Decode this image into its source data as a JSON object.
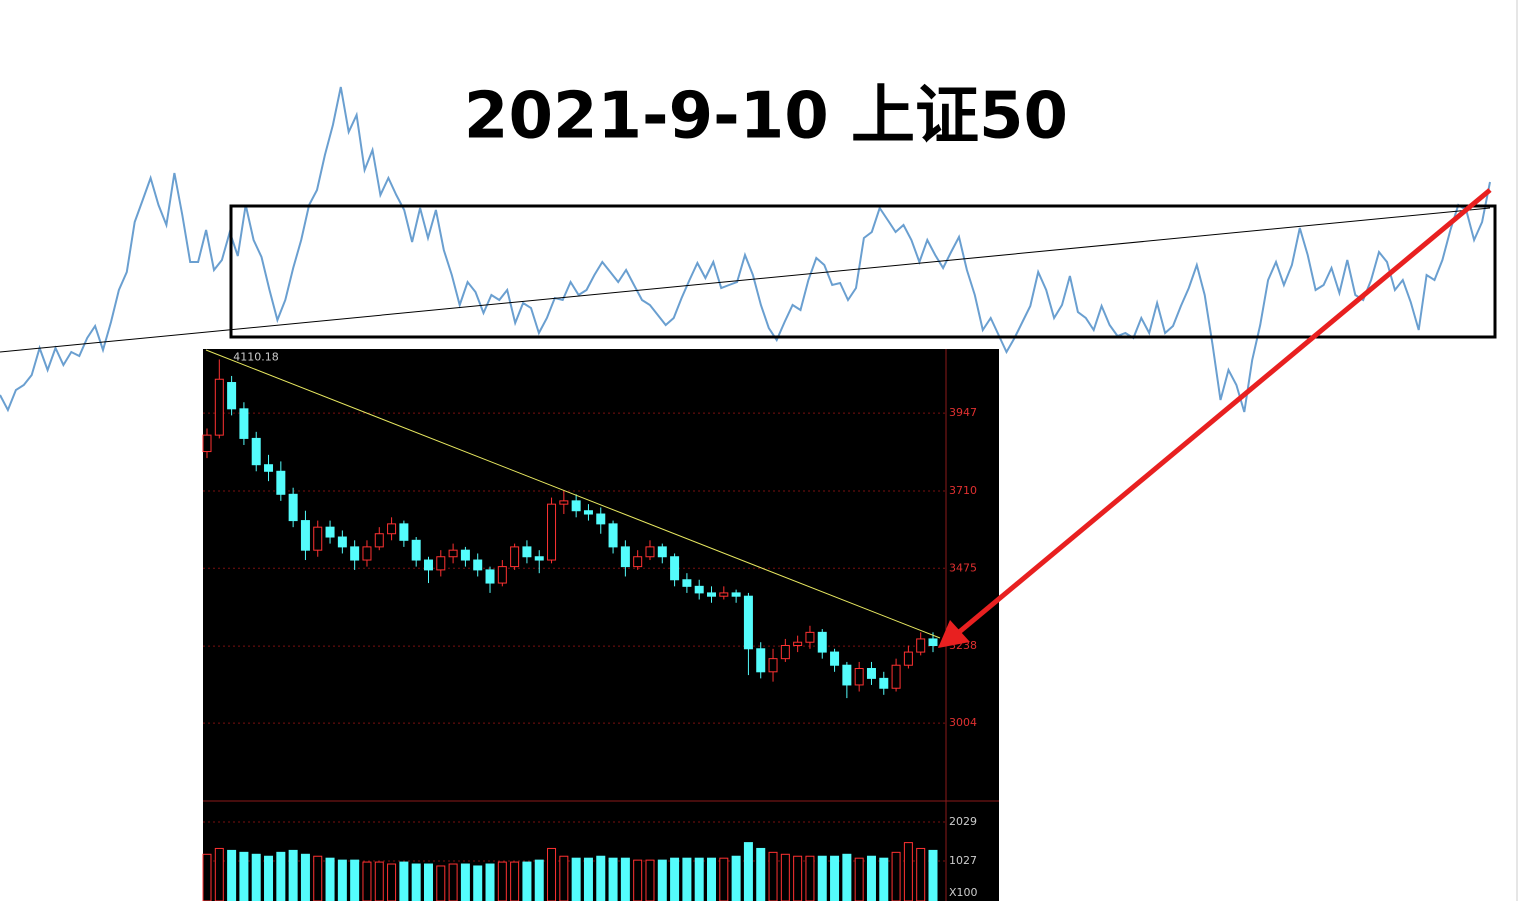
{
  "chart_data": [
    {
      "type": "line",
      "title": "2021-9-10 上证50",
      "color": "#6a9fd0",
      "ylim": [
        0,
        450
      ],
      "values": [
        55,
        40,
        60,
        65,
        75,
        102,
        80,
        102,
        85,
        98,
        94,
        112,
        124,
        100,
        128,
        160,
        178,
        228,
        250,
        272,
        245,
        225,
        277,
        235,
        188,
        188,
        220,
        180,
        190,
        218,
        194,
        245,
        210,
        193,
        160,
        130,
        150,
        182,
        210,
        245,
        260,
        295,
        325,
        363,
        318,
        335,
        280,
        300,
        255,
        272,
        255,
        240,
        208,
        242,
        212,
        240,
        200,
        175,
        145,
        168,
        158,
        137,
        155,
        150,
        160,
        127,
        147,
        142,
        117,
        132,
        152,
        150,
        168,
        155,
        160,
        175,
        188,
        178,
        168,
        180,
        165,
        150,
        145,
        135,
        125,
        132,
        152,
        170,
        187,
        172,
        188,
        162,
        165,
        168,
        195,
        175,
        145,
        122,
        110,
        128,
        145,
        140,
        170,
        192,
        185,
        165,
        167,
        150,
        162,
        212,
        218,
        242,
        230,
        218,
        225,
        210,
        188,
        210,
        195,
        182,
        198,
        213,
        180,
        155,
        120,
        132,
        115,
        98,
        112,
        128,
        144,
        178,
        160,
        132,
        145,
        174,
        138,
        132,
        120,
        144,
        125,
        114,
        117,
        112,
        132,
        117,
        147,
        117,
        124,
        144,
        162,
        185,
        155,
        105,
        50,
        80,
        65,
        38,
        90,
        125,
        170,
        188,
        165,
        185,
        222,
        195,
        160,
        165,
        182,
        157,
        190,
        155,
        150,
        170,
        198,
        188,
        160,
        170,
        148,
        120,
        175,
        170,
        190,
        220,
        245,
        240,
        210,
        228,
        268
      ]
    },
    {
      "type": "candlestick",
      "up_color": "#ff3232",
      "down_color": "#54fcfc",
      "ylim": [
        2770,
        4142
      ],
      "yticks": [
        3947,
        3710,
        3475,
        3238,
        3004
      ],
      "open": [
        3830,
        3880,
        4040,
        3960,
        3870,
        3790,
        3770,
        3700,
        3620,
        3530,
        3600,
        3570,
        3540,
        3500,
        3540,
        3580,
        3610,
        3560,
        3500,
        3470,
        3510,
        3530,
        3500,
        3470,
        3430,
        3480,
        3540,
        3510,
        3500,
        3670,
        3680,
        3650,
        3640,
        3610,
        3540,
        3480,
        3510,
        3540,
        3510,
        3440,
        3420,
        3400,
        3390,
        3400,
        3390,
        3230,
        3160,
        3200,
        3240,
        3250,
        3280,
        3220,
        3180,
        3120,
        3170,
        3140,
        3110,
        3180,
        3220,
        3260
      ],
      "close": [
        3880,
        4050,
        3960,
        3870,
        3790,
        3770,
        3700,
        3620,
        3530,
        3600,
        3570,
        3540,
        3500,
        3540,
        3580,
        3610,
        3560,
        3500,
        3470,
        3510,
        3530,
        3500,
        3470,
        3430,
        3480,
        3540,
        3510,
        3500,
        3670,
        3680,
        3650,
        3640,
        3610,
        3540,
        3480,
        3510,
        3540,
        3510,
        3440,
        3420,
        3400,
        3390,
        3400,
        3390,
        3230,
        3160,
        3200,
        3240,
        3250,
        3280,
        3220,
        3180,
        3120,
        3170,
        3140,
        3110,
        3180,
        3220,
        3260,
        3240
      ],
      "high": [
        3900,
        4110.18,
        4060,
        3980,
        3890,
        3820,
        3800,
        3720,
        3650,
        3620,
        3620,
        3590,
        3560,
        3560,
        3600,
        3630,
        3620,
        3570,
        3510,
        3530,
        3550,
        3540,
        3520,
        3480,
        3500,
        3550,
        3560,
        3530,
        3690,
        3710,
        3700,
        3670,
        3660,
        3620,
        3560,
        3530,
        3560,
        3550,
        3520,
        3460,
        3440,
        3420,
        3420,
        3410,
        3400,
        3250,
        3230,
        3260,
        3270,
        3300,
        3290,
        3230,
        3190,
        3190,
        3190,
        3160,
        3200,
        3240,
        3280,
        3280
      ],
      "low": [
        3810,
        3870,
        3940,
        3850,
        3770,
        3740,
        3680,
        3600,
        3500,
        3510,
        3550,
        3520,
        3470,
        3480,
        3530,
        3560,
        3540,
        3480,
        3430,
        3450,
        3490,
        3480,
        3450,
        3400,
        3420,
        3470,
        3490,
        3460,
        3490,
        3640,
        3630,
        3620,
        3580,
        3520,
        3450,
        3470,
        3500,
        3490,
        3420,
        3400,
        3380,
        3370,
        3380,
        3370,
        3150,
        3140,
        3130,
        3190,
        3220,
        3230,
        3200,
        3160,
        3080,
        3100,
        3120,
        3090,
        3100,
        3170,
        3210,
        3220
      ]
    },
    {
      "type": "bar",
      "y_label": "X100",
      "ylim": [
        0,
        2569
      ],
      "yticks": [
        2029,
        1027
      ],
      "values": [
        1200,
        1350,
        1300,
        1250,
        1200,
        1150,
        1250,
        1300,
        1200,
        1150,
        1100,
        1050,
        1050,
        1000,
        1000,
        950,
        1000,
        950,
        950,
        900,
        950,
        950,
        900,
        950,
        1000,
        1000,
        1000,
        1050,
        1350,
        1150,
        1100,
        1100,
        1150,
        1100,
        1100,
        1050,
        1050,
        1050,
        1100,
        1100,
        1100,
        1100,
        1100,
        1150,
        1500,
        1350,
        1250,
        1200,
        1150,
        1150,
        1150,
        1150,
        1200,
        1100,
        1150,
        1100,
        1250,
        1500,
        1350,
        1300
      ]
    }
  ]
}
